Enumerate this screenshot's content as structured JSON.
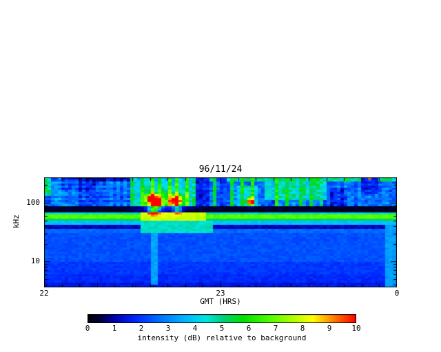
{
  "chart_data": {
    "type": "heatmap",
    "title": "96/11/24",
    "xlabel": "GMT (HRS)",
    "ylabel": "kHz",
    "x_range": [
      22,
      24
    ],
    "x_major_ticks": [
      {
        "value": 22,
        "label": "22"
      },
      {
        "value": 23,
        "label": "23"
      },
      {
        "value": 24,
        "label": "0"
      }
    ],
    "x_minor_step": 0.1,
    "y_scale": "log",
    "y_range_khz": [
      3.6,
      272
    ],
    "y_major_ticks": [
      {
        "value": 10,
        "label": "10"
      },
      {
        "value": 100,
        "label": "100"
      }
    ],
    "y_minor_ticks": [
      4,
      5,
      6,
      7,
      8,
      9,
      20,
      30,
      40,
      50,
      60,
      70,
      80,
      90,
      200
    ],
    "intensity_range": [
      0,
      10
    ],
    "colorbar": {
      "label": "intensity (dB) relative to background",
      "tick_labels": [
        "0",
        "1",
        "2",
        "3",
        "4",
        "5",
        "6",
        "7",
        "8",
        "9",
        "10"
      ]
    },
    "colormap": [
      {
        "p": 0.0,
        "c": "#000000"
      },
      {
        "p": 0.05,
        "c": "#000040"
      },
      {
        "p": 0.1,
        "c": "#0000b4"
      },
      {
        "p": 0.18,
        "c": "#0028ff"
      },
      {
        "p": 0.28,
        "c": "#0078ff"
      },
      {
        "p": 0.36,
        "c": "#00b4ff"
      },
      {
        "p": 0.44,
        "c": "#00e4e4"
      },
      {
        "p": 0.5,
        "c": "#00d080"
      },
      {
        "p": 0.58,
        "c": "#00e000"
      },
      {
        "p": 0.68,
        "c": "#50ff00"
      },
      {
        "p": 0.76,
        "c": "#aaff00"
      },
      {
        "p": 0.84,
        "c": "#ffff00"
      },
      {
        "p": 0.92,
        "c": "#ff7800"
      },
      {
        "p": 1.0,
        "c": "#ff0000"
      }
    ],
    "bands": [
      {
        "f0": 230,
        "f1": 272.5,
        "i": 1.3
      },
      {
        "f0": 150,
        "f1": 230,
        "i": 2.6
      },
      {
        "f0": 90,
        "f1": 150,
        "i": 2.7
      },
      {
        "f0": 66,
        "f1": 90,
        "i": 0.35
      },
      {
        "f0": 62,
        "f1": 66,
        "i": 4.6
      },
      {
        "f0": 54,
        "f1": 62,
        "i": 6.8
      },
      {
        "f0": 48,
        "f1": 54,
        "i": 5.2
      },
      {
        "f0": 41,
        "f1": 48,
        "i": 3.8
      },
      {
        "f0": 36,
        "f1": 41,
        "i": 1.1
      },
      {
        "f0": 30,
        "f1": 36,
        "i": 2.6
      },
      {
        "f0": 10,
        "f1": 30,
        "i": 2.3
      },
      {
        "f0": 6,
        "f1": 10,
        "i": 2.0
      },
      {
        "f0": 4.3,
        "f1": 6,
        "i": 1.8
      },
      {
        "f0": 3.4,
        "f1": 4.3,
        "i": 1.5
      }
    ],
    "streaks": [
      {
        "t0": 22.0,
        "t1": 22.04,
        "f0": 130,
        "f1": 272.5,
        "i": 5.0
      },
      {
        "t0": 22.9,
        "t1": 24.05,
        "f0": 225,
        "f1": 272.5,
        "i": 5.0
      },
      {
        "t0": 23.25,
        "t1": 23.6,
        "f0": 110,
        "f1": 260,
        "i": 4.6
      },
      {
        "t0": 22.5,
        "t1": 22.9,
        "f0": 90,
        "f1": 272.5,
        "i": 4.2
      },
      {
        "t0": 22.55,
        "t1": 22.92,
        "f0": 48,
        "f1": 66,
        "i": 7.8
      },
      {
        "t0": 22.55,
        "t1": 22.95,
        "f0": 30,
        "f1": 48,
        "i": 4.6
      },
      {
        "t0": 22.6,
        "t1": 22.65,
        "f0": 4,
        "f1": 45,
        "i": 3.4
      },
      {
        "t0": 23.93,
        "t1": 24.05,
        "f0": 3.4,
        "f1": 45,
        "i": 3.3
      },
      {
        "t0": 23.1,
        "t1": 23.22,
        "f0": 90,
        "f1": 200,
        "i": 4.4
      }
    ],
    "vstreaks": [
      {
        "t": 22.505,
        "i": 5.6
      },
      {
        "t": 22.56,
        "i": 6.0
      },
      {
        "t": 22.61,
        "i": 6.3
      },
      {
        "t": 22.66,
        "i": 6.1
      },
      {
        "t": 22.71,
        "i": 6.4
      },
      {
        "t": 22.76,
        "i": 6.2
      },
      {
        "t": 22.81,
        "i": 5.8
      },
      {
        "t": 22.86,
        "i": 5.2
      },
      {
        "t": 22.97,
        "i": 5.0
      },
      {
        "t": 23.06,
        "i": 5.4
      },
      {
        "t": 23.13,
        "i": 5.8
      },
      {
        "t": 23.19,
        "i": 5.6
      },
      {
        "t": 23.31,
        "i": 5.7
      },
      {
        "t": 23.38,
        "i": 5.9
      },
      {
        "t": 23.45,
        "i": 5.6
      },
      {
        "t": 23.52,
        "i": 5.8
      },
      {
        "t": 23.57,
        "i": 5.3
      }
    ],
    "vstreak_width": 0.022,
    "vstreak_frange": [
      90,
      272.5
    ],
    "dims": [
      {
        "t0": 22.86,
        "t1": 22.93,
        "f0": 90,
        "f1": 272.5,
        "i": 1.5
      },
      {
        "t0": 22.98,
        "t1": 23.03,
        "f0": 90,
        "f1": 272.5,
        "i": 2.0
      },
      {
        "t0": 23.62,
        "t1": 23.72,
        "f0": 90,
        "f1": 180,
        "i": 1.8
      },
      {
        "t0": 23.8,
        "t1": 23.9,
        "f0": 140,
        "f1": 272.5,
        "i": 1.6
      },
      {
        "t0": 22.1,
        "t1": 22.3,
        "f0": 160,
        "f1": 272.5,
        "i": 1.8
      }
    ],
    "blobs": [
      {
        "t": 22.615,
        "f": 115,
        "st": 0.02,
        "sl": 0.055,
        "a": 8.5
      },
      {
        "t": 22.648,
        "f": 95,
        "st": 0.014,
        "sl": 0.045,
        "a": 6.5
      },
      {
        "t": 22.62,
        "f": 75,
        "st": 0.02,
        "sl": 0.05,
        "a": 6.0
      },
      {
        "t": 22.75,
        "f": 110,
        "st": 0.018,
        "sl": 0.05,
        "a": 8.0
      },
      {
        "t": 22.755,
        "f": 75,
        "st": 0.014,
        "sl": 0.04,
        "a": 4.5
      },
      {
        "t": 23.17,
        "f": 105,
        "st": 0.012,
        "sl": 0.045,
        "a": 7.0
      },
      {
        "t": 22.68,
        "f": 110,
        "st": 0.09,
        "sl": 0.12,
        "a": 2.5
      }
    ],
    "noise": {
      "upper": 1.3,
      "lower": 0.45,
      "col_upper": 1.1,
      "row_left": 0.9,
      "top_speckle": 2.5
    }
  }
}
